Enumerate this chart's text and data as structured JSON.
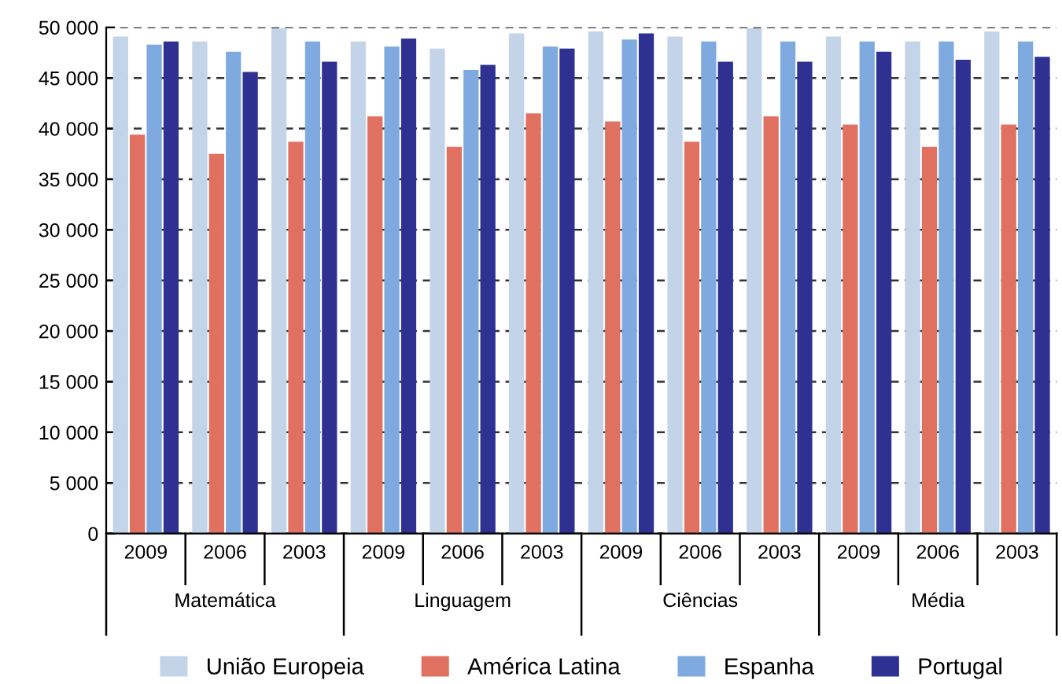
{
  "chart_data": {
    "type": "bar",
    "categories": [
      "2009",
      "2006",
      "2003",
      "2009",
      "2006",
      "2003",
      "2009",
      "2006",
      "2003",
      "2009",
      "2006",
      "2003"
    ],
    "annotations": [
      "Matemática",
      "Linguagem",
      "Ciências",
      "Média"
    ],
    "series": [
      {
        "name": "União Europeia",
        "color": "#c3d3e8",
        "values": [
          49100,
          48600,
          49900,
          48600,
          47900,
          49400,
          49600,
          49100,
          49900,
          49100,
          48600,
          49600
        ]
      },
      {
        "name": "América Latina",
        "color": "#e07060",
        "values": [
          39400,
          37500,
          38700,
          41200,
          38200,
          41500,
          40700,
          38700,
          41200,
          40400,
          38200,
          40400
        ]
      },
      {
        "name": "Espanha",
        "color": "#7eaae0",
        "values": [
          48300,
          47600,
          48600,
          48100,
          45800,
          48100,
          48800,
          48600,
          48600,
          48600,
          48600,
          48600
        ]
      },
      {
        "name": "Portugal",
        "color": "#2e3192",
        "values": [
          48600,
          45600,
          46600,
          48900,
          46300,
          47900,
          49400,
          46600,
          46600,
          47600,
          46800,
          47100
        ]
      }
    ],
    "ylim": [
      0,
      50000
    ],
    "yticks": [
      0,
      {
        "value": 5000,
        "label": "5 000"
      },
      {
        "value": 10000,
        "label": "10 000"
      },
      {
        "value": 15000,
        "label": "15 000"
      },
      {
        "value": 20000,
        "label": "20 000"
      },
      {
        "value": 25000,
        "label": "25 000"
      },
      {
        "value": 30000,
        "label": "30 000"
      },
      {
        "value": 35000,
        "label": "35 000"
      },
      {
        "value": 40000,
        "label": "40 000"
      },
      {
        "value": 45000,
        "label": "45 000"
      },
      {
        "value": 50000,
        "label": "50 000"
      }
    ],
    "grid": "y",
    "legend": "bottom"
  }
}
